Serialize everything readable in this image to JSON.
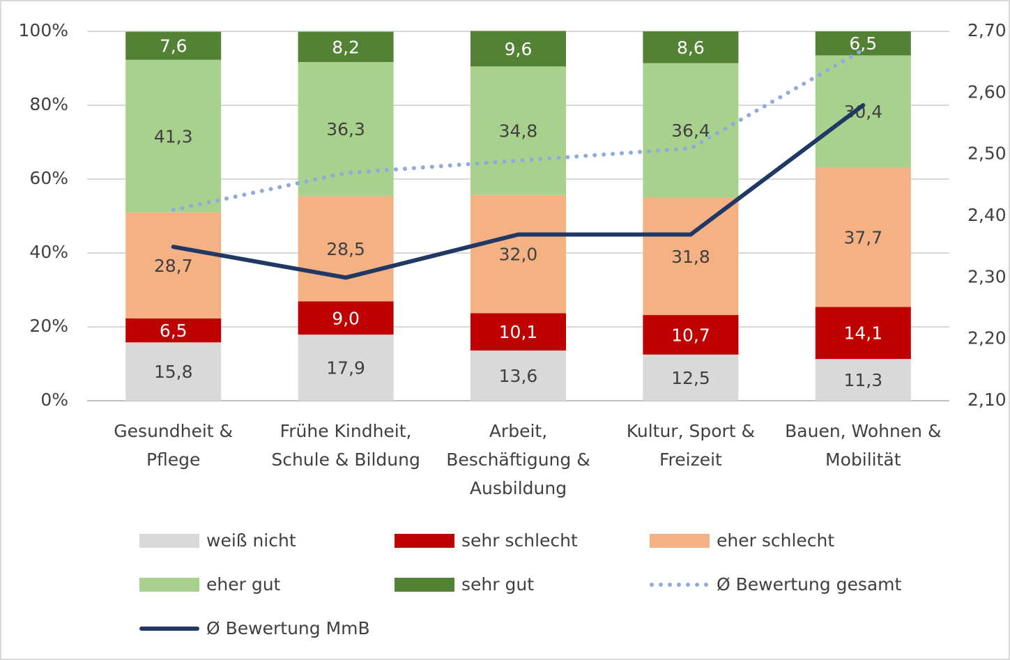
{
  "chart_data": {
    "type": "bar",
    "stacked": true,
    "categories": [
      "Gesundheit &\nPflege",
      "Frühe Kindheit,\nSchule & Bildung",
      "Arbeit,\nBeschäftigung &\nAusbildung",
      "Kultur, Sport &\nFreizeit",
      "Bauen, Wohnen &\nMobilität"
    ],
    "series": [
      {
        "name": "weiß nicht",
        "color": "#d9d9d9",
        "values": [
          15.8,
          17.9,
          13.6,
          12.5,
          11.3
        ],
        "value_labels": [
          "15,8",
          "17,9",
          "13,6",
          "12,5",
          "11,3"
        ]
      },
      {
        "name": "sehr schlecht",
        "color": "#c00000",
        "values": [
          6.5,
          9.0,
          10.1,
          10.7,
          14.1
        ],
        "value_labels": [
          "6,5",
          "9,0",
          "10,1",
          "10,7",
          "14,1"
        ]
      },
      {
        "name": "eher schlecht",
        "color": "#f4b183",
        "values": [
          28.7,
          28.5,
          32.0,
          31.8,
          37.7
        ],
        "value_labels": [
          "28,7",
          "28,5",
          "32,0",
          "31,8",
          "37,7"
        ]
      },
      {
        "name": "eher gut",
        "color": "#a9d18e",
        "values": [
          41.3,
          36.3,
          34.8,
          36.4,
          30.4
        ],
        "value_labels": [
          "41,3",
          "36,3",
          "34,8",
          "36,4",
          "30,4"
        ]
      },
      {
        "name": "sehr gut",
        "color": "#548235",
        "values": [
          7.6,
          8.2,
          9.6,
          8.6,
          6.5
        ],
        "value_labels": [
          "7,6",
          "8,2",
          "9,6",
          "8,6",
          "6,5"
        ]
      },
      {
        "name": "Ø Bewertung gesamt",
        "type": "line",
        "axis": "y2",
        "dotted": true,
        "color": "#8faadc",
        "values": [
          2.41,
          2.47,
          2.49,
          2.51,
          2.67
        ]
      },
      {
        "name": "Ø Bewertung MmB",
        "type": "line",
        "axis": "y2",
        "dotted": false,
        "color": "#203864",
        "values": [
          2.35,
          2.3,
          2.37,
          2.37,
          2.58
        ]
      }
    ],
    "ylim": [
      0,
      100
    ],
    "yticks": [
      {
        "value": 0,
        "label": "0%"
      },
      {
        "value": 20,
        "label": "20%"
      },
      {
        "value": 40,
        "label": "40%"
      },
      {
        "value": 60,
        "label": "60%"
      },
      {
        "value": 80,
        "label": "80%"
      },
      {
        "value": 100,
        "label": "100%"
      }
    ],
    "y2lim": [
      2.1,
      2.7
    ],
    "y2ticks": [
      {
        "value": 2.1,
        "label": "2,10"
      },
      {
        "value": 2.2,
        "label": "2,20"
      },
      {
        "value": 2.3,
        "label": "2,30"
      },
      {
        "value": 2.4,
        "label": "2,40"
      },
      {
        "value": 2.5,
        "label": "2,50"
      },
      {
        "value": 2.6,
        "label": "2,60"
      },
      {
        "value": 2.7,
        "label": "2,70"
      }
    ],
    "grid": true,
    "legend": "bottom"
  }
}
